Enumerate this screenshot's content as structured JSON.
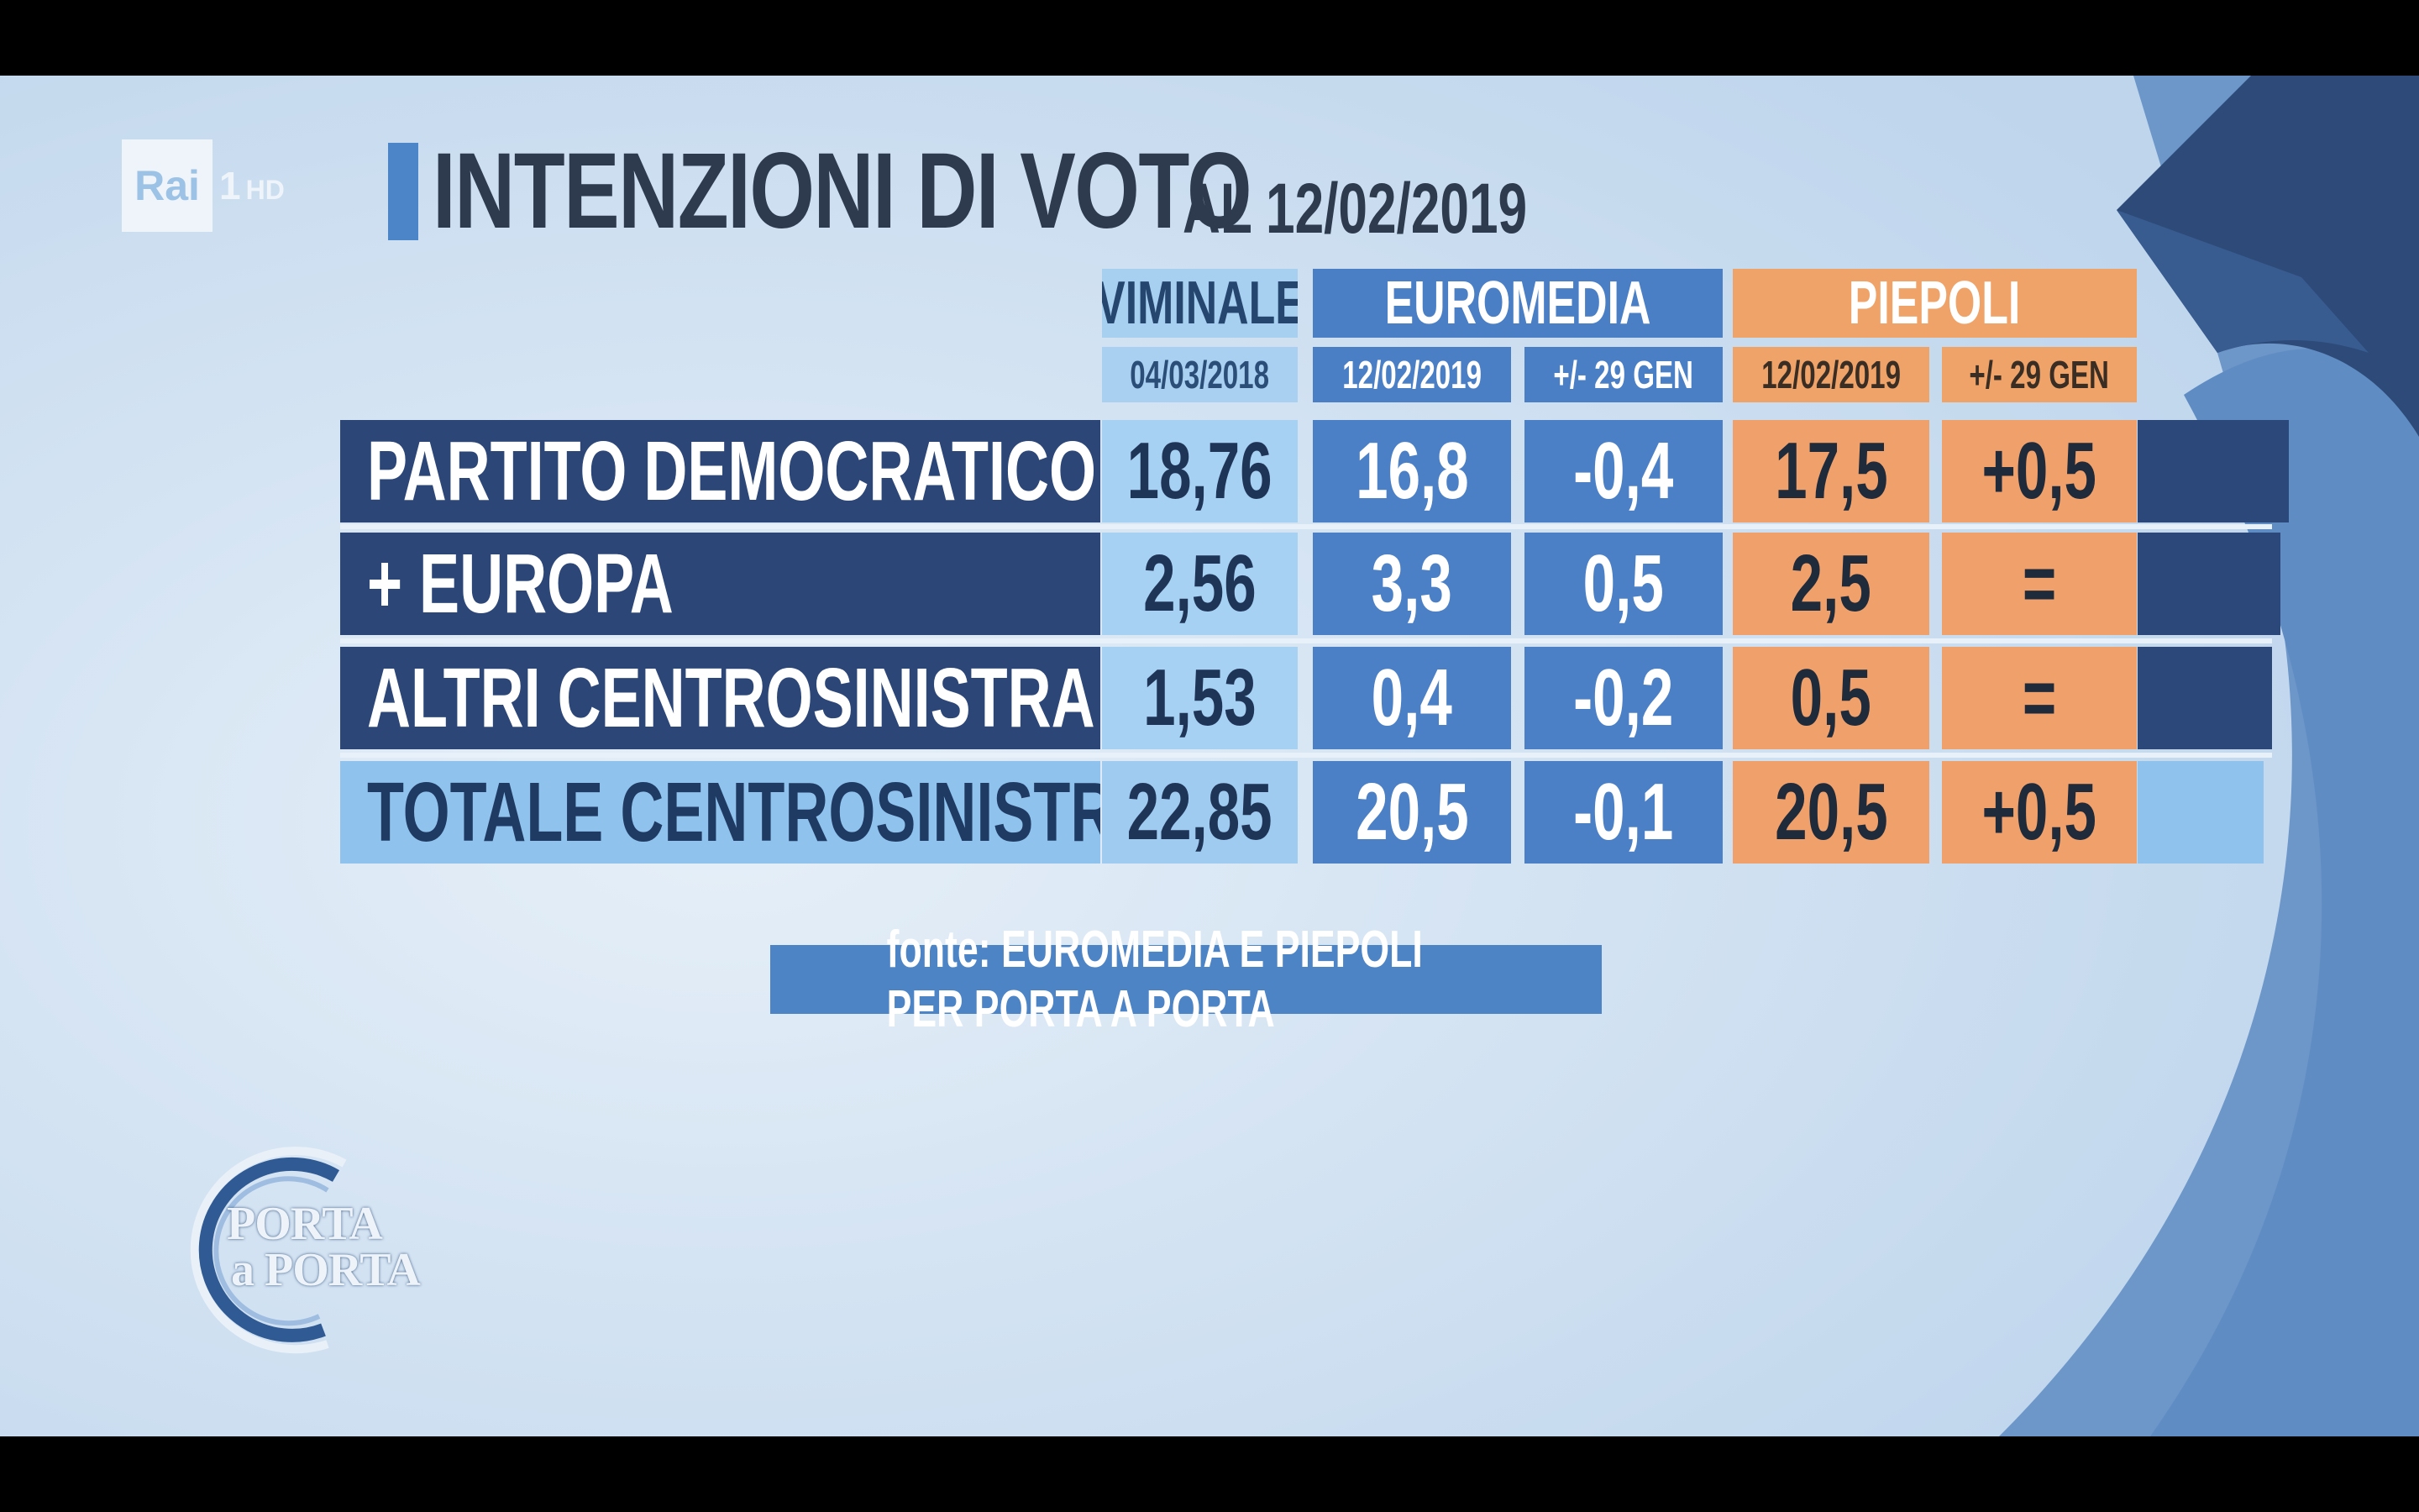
{
  "channel": {
    "brand": "Rai",
    "number": "1",
    "quality": "HD"
  },
  "title": {
    "main": "INTENZIONI DI VOTO",
    "date": "AL 12/02/2019"
  },
  "chart_data": {
    "type": "table",
    "groups": [
      {
        "label": "VIMINALE",
        "color": "#a6cff0",
        "columns": [
          "04/03/2018"
        ]
      },
      {
        "label": "EUROMEDIA",
        "color": "#4a7fc6",
        "columns": [
          "12/02/2019",
          "+/- 29 GEN"
        ]
      },
      {
        "label": "PIEPOLI",
        "color": "#f0a368",
        "columns": [
          "12/02/2019",
          "+/- 29 GEN"
        ]
      }
    ],
    "rows": [
      {
        "label": "PARTITO DEMOCRATICO - PSE",
        "values": [
          "18,76",
          "16,8",
          "-0,4",
          "17,5",
          "+0,5"
        ]
      },
      {
        "label": "+ EUROPA",
        "values": [
          "2,56",
          "3,3",
          "0,5",
          "2,5",
          "="
        ]
      },
      {
        "label": "ALTRI CENTROSINISTRA",
        "values": [
          "1,53",
          "0,4",
          "-0,2",
          "0,5",
          "="
        ]
      },
      {
        "label": "TOTALE CENTROSINISTRA",
        "values": [
          "22,85",
          "20,5",
          "-0,1",
          "20,5",
          "+0,5"
        ]
      }
    ]
  },
  "source": "fonte: EUROMEDIA E PIEPOLI PER PORTA A PORTA",
  "show_logo": {
    "line1": "PORTA",
    "line2": "a PORTA"
  }
}
